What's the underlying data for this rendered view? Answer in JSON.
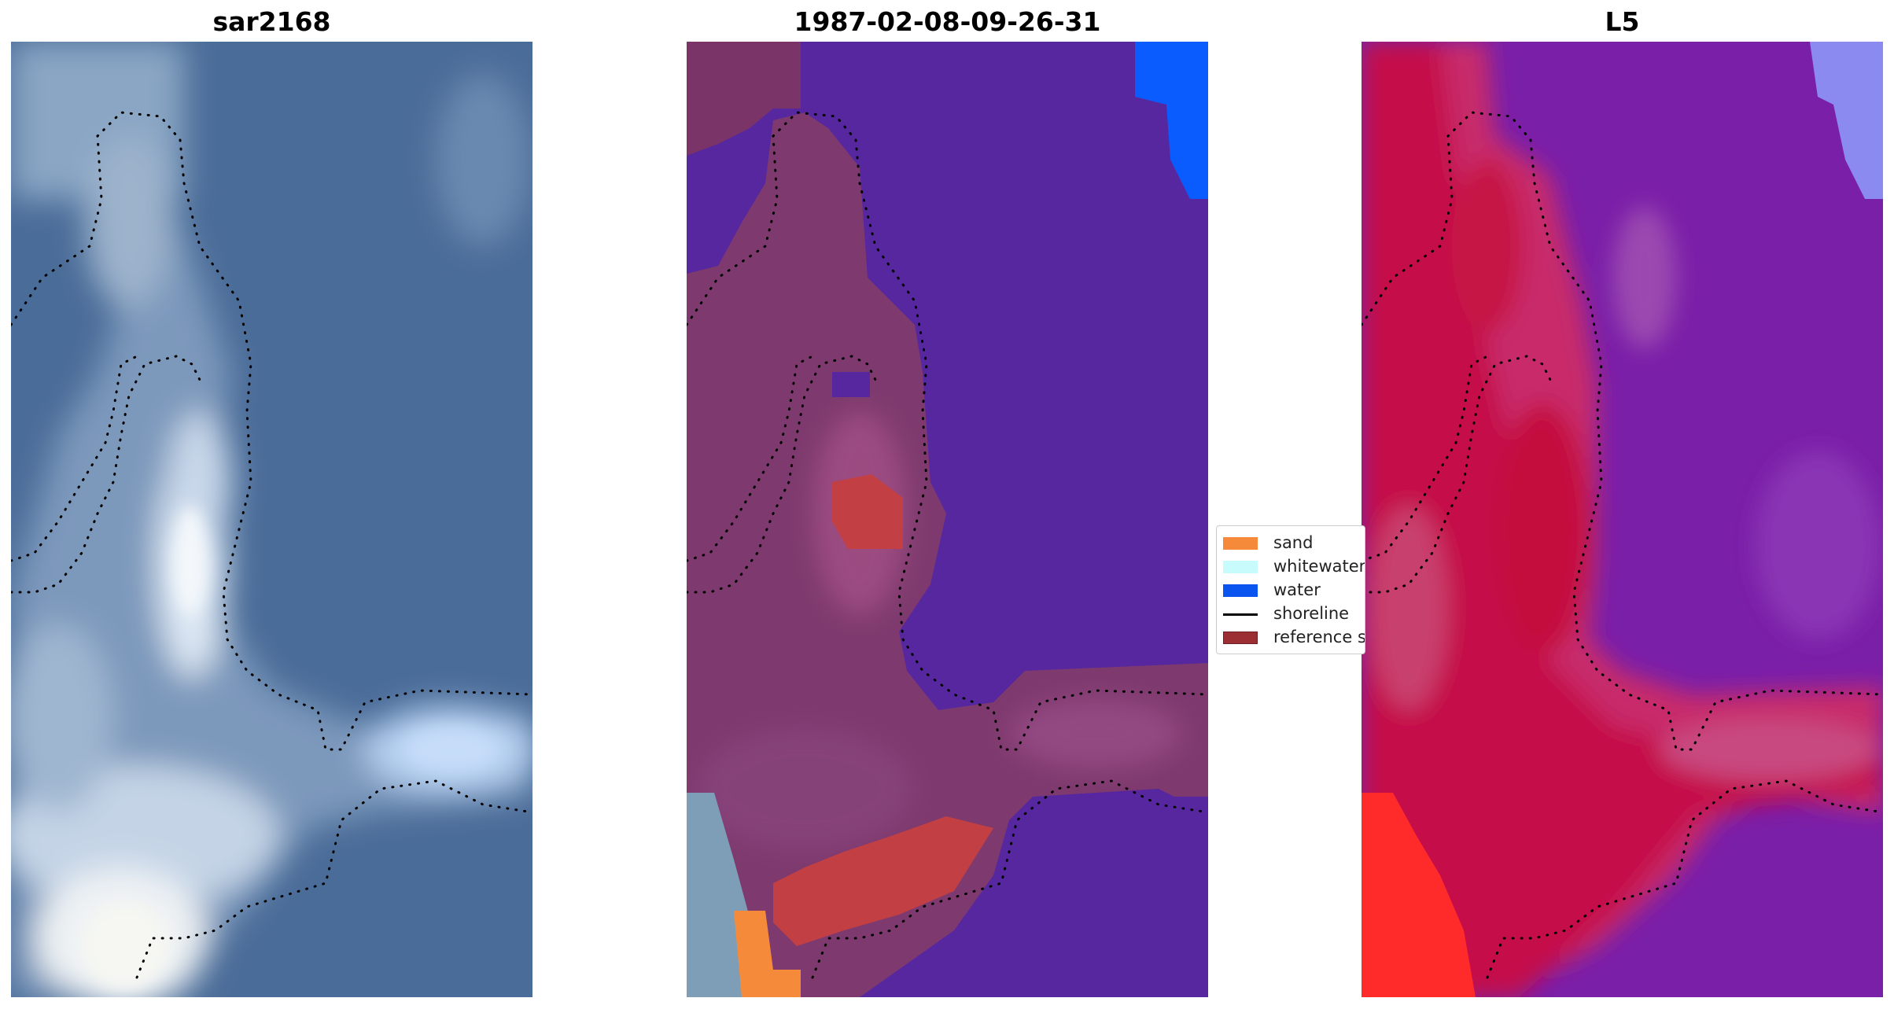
{
  "panels": [
    {
      "title": "sar2168"
    },
    {
      "title": "1987-02-08-09-26-31"
    },
    {
      "title": "L5"
    }
  ],
  "legend": {
    "items": [
      {
        "label": "sand",
        "color": "#f58b3a",
        "kind": "patch"
      },
      {
        "label": "whitewater",
        "color": "#c8fcfc",
        "kind": "patch"
      },
      {
        "label": "water",
        "color": "#0a55f0",
        "kind": "patch"
      },
      {
        "label": "shoreline",
        "color": "#000000",
        "kind": "line"
      },
      {
        "label": "reference s",
        "color": "#9b2f34",
        "kind": "patch"
      }
    ]
  },
  "colors": {
    "sea_rgb": "#4a6e9a",
    "classified_water": "#5727a0",
    "classified_land": "#7e3a6e",
    "index_low": "#6a16b0",
    "index_high": "#c8103e"
  }
}
